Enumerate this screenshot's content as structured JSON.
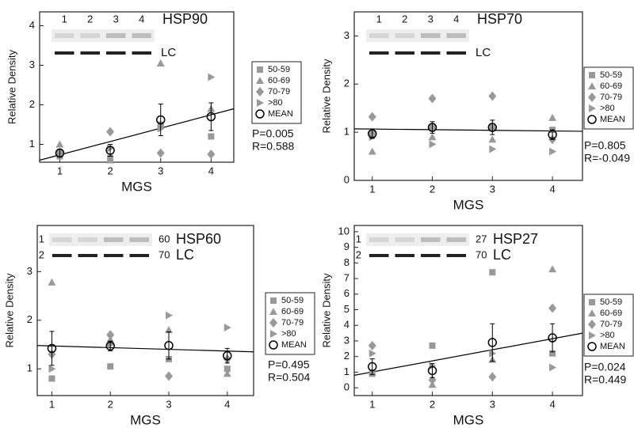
{
  "chart_data": [
    {
      "type": "scatter",
      "title": "HSP90",
      "x_label": "MGS",
      "y_label": "Relative Density",
      "x": [
        1,
        2,
        3,
        4
      ],
      "xlim": [
        0.6,
        4.45
      ],
      "ylim": [
        0.55,
        4.35
      ],
      "xticks": [
        1,
        2,
        3,
        4
      ],
      "yticks": [
        1,
        2,
        3,
        4
      ],
      "series": [
        {
          "name": "50-59",
          "color": "#999999",
          "marker": "square",
          "values": [
            0.7,
            0.65,
            1.5,
            1.2
          ]
        },
        {
          "name": "60-69",
          "color": "#999999",
          "marker": "triangle-up",
          "values": [
            1.0,
            0.6,
            3.05,
            1.9
          ]
        },
        {
          "name": "70-79",
          "color": "#999999",
          "marker": "diamond",
          "values": [
            0.8,
            1.32,
            0.78,
            0.75
          ]
        },
        {
          "name": ">80",
          "color": "#999999",
          "marker": "triangle-right",
          "values": [
            0.75,
            0.9,
            1.4,
            2.7
          ]
        },
        {
          "name": "MEAN",
          "color": "#000000",
          "marker": "circle",
          "values": [
            0.78,
            0.85,
            1.62,
            1.7
          ],
          "errors": [
            0.1,
            0.15,
            0.4,
            0.35
          ]
        }
      ],
      "fit": {
        "x": [
          0.6,
          4.45
        ],
        "y": [
          0.6,
          1.9
        ]
      },
      "annotations": [
        "P=0.005",
        "R=0.588"
      ],
      "blot": {
        "lanes": [
          "1",
          "2",
          "3",
          "4"
        ],
        "control": "LC"
      }
    },
    {
      "type": "scatter",
      "title": "HSP70",
      "x_label": "MGS",
      "y_label": "Relative Density",
      "x": [
        1,
        2,
        3,
        4
      ],
      "xlim": [
        0.7,
        4.5
      ],
      "ylim": [
        0,
        3.5
      ],
      "xticks": [
        1,
        2,
        3,
        4
      ],
      "yticks": [
        0,
        1,
        2,
        3
      ],
      "series": [
        {
          "name": "50-59",
          "color": "#999999",
          "marker": "square",
          "values": [
            1.0,
            1.1,
            1.1,
            1.05
          ]
        },
        {
          "name": "60-69",
          "color": "#999999",
          "marker": "triangle-up",
          "values": [
            0.6,
            0.9,
            0.85,
            1.3
          ]
        },
        {
          "name": "70-79",
          "color": "#999999",
          "marker": "diamond",
          "values": [
            1.32,
            1.7,
            1.75,
            0.85
          ]
        },
        {
          "name": ">80",
          "color": "#999999",
          "marker": "triangle-right",
          "values": [
            0.9,
            0.75,
            0.65,
            0.6
          ]
        },
        {
          "name": "MEAN",
          "color": "#000000",
          "marker": "circle",
          "values": [
            0.97,
            1.1,
            1.1,
            0.95
          ],
          "errors": [
            0.1,
            0.12,
            0.15,
            0.1
          ]
        }
      ],
      "fit": {
        "x": [
          0.7,
          4.5
        ],
        "y": [
          1.07,
          1.02
        ]
      },
      "annotations": [
        "P=0.805",
        "R=-0.049"
      ],
      "blot": {
        "lanes": [
          "1",
          "2",
          "3",
          "4"
        ],
        "control": "LC"
      }
    },
    {
      "type": "scatter",
      "title": "HSP60",
      "x_label": "MGS",
      "y_label": "Relative Density",
      "x": [
        1,
        2,
        3,
        4
      ],
      "xlim": [
        0.75,
        4.45
      ],
      "ylim": [
        0.45,
        3.95
      ],
      "xticks": [
        1,
        2,
        3,
        4
      ],
      "yticks": [
        1,
        2,
        3
      ],
      "series": [
        {
          "name": "50-59",
          "color": "#999999",
          "marker": "square",
          "values": [
            0.8,
            1.05,
            1.2,
            1.0
          ]
        },
        {
          "name": "60-69",
          "color": "#999999",
          "marker": "triangle-up",
          "values": [
            2.78,
            1.6,
            1.8,
            0.9
          ]
        },
        {
          "name": "70-79",
          "color": "#999999",
          "marker": "diamond",
          "values": [
            1.3,
            1.7,
            0.85,
            1.2
          ]
        },
        {
          "name": ">80",
          "color": "#999999",
          "marker": "triangle-right",
          "values": [
            1.0,
            1.5,
            2.1,
            1.85
          ]
        },
        {
          "name": "MEAN",
          "color": "#000000",
          "marker": "circle",
          "values": [
            1.42,
            1.47,
            1.48,
            1.27
          ],
          "errors": [
            0.35,
            0.1,
            0.28,
            0.15
          ]
        }
      ],
      "fit": {
        "x": [
          0.75,
          4.45
        ],
        "y": [
          1.48,
          1.35
        ]
      },
      "annotations": [
        "P=0.495",
        "R=0.504"
      ],
      "blot": {
        "rows": [
          "1",
          "2"
        ],
        "tags": [
          "60",
          "70"
        ],
        "control": "LC"
      }
    },
    {
      "type": "scatter",
      "title": "HSP27",
      "x_label": "MGS",
      "y_label": "Relative Density",
      "x": [
        1,
        2,
        3,
        4
      ],
      "xlim": [
        0.7,
        4.5
      ],
      "ylim": [
        -0.5,
        10.4
      ],
      "xticks": [
        1,
        2,
        3,
        4
      ],
      "yticks": [
        0,
        1,
        2,
        3,
        4,
        5,
        6,
        7,
        8,
        9,
        10
      ],
      "series": [
        {
          "name": "50-59",
          "color": "#999999",
          "marker": "square",
          "values": [
            0.9,
            2.7,
            7.4,
            2.2
          ]
        },
        {
          "name": "60-69",
          "color": "#999999",
          "marker": "triangle-up",
          "values": [
            1.0,
            0.2,
            1.8,
            7.6
          ]
        },
        {
          "name": "70-79",
          "color": "#999999",
          "marker": "diamond",
          "values": [
            2.7,
            0.5,
            0.7,
            5.1
          ]
        },
        {
          "name": ">80",
          "color": "#999999",
          "marker": "triangle-right",
          "values": [
            2.2,
            1.4,
            2.2,
            1.3
          ]
        },
        {
          "name": "MEAN",
          "color": "#000000",
          "marker": "circle",
          "values": [
            1.35,
            1.1,
            2.9,
            3.2
          ],
          "errors": [
            0.5,
            0.45,
            1.2,
            0.9
          ]
        }
      ],
      "fit": {
        "x": [
          0.7,
          4.5
        ],
        "y": [
          0.8,
          3.5
        ]
      },
      "annotations": [
        "P=0.024",
        "R=0.449"
      ],
      "blot": {
        "rows": [
          "1",
          "2"
        ],
        "tags": [
          "27",
          "70"
        ],
        "control": "LC"
      }
    }
  ]
}
